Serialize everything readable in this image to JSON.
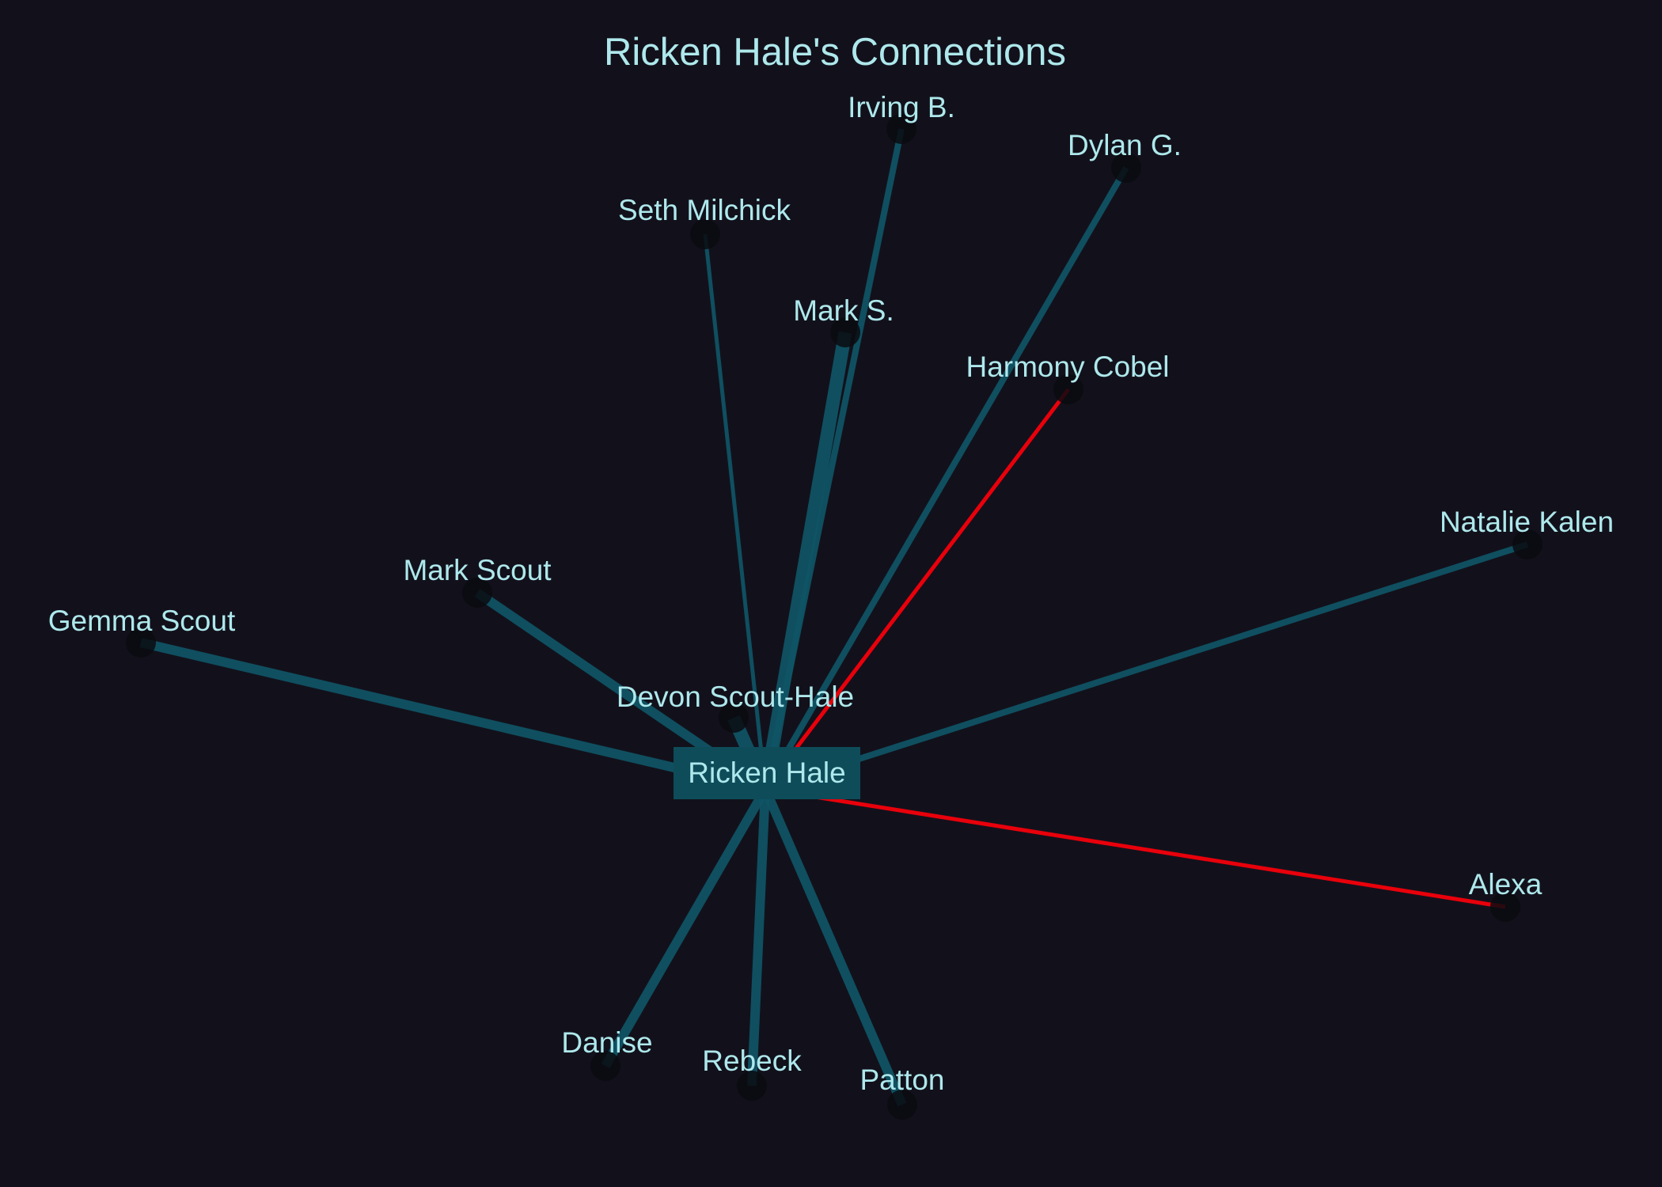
{
  "title": "Ricken Hale's Connections",
  "colors": {
    "background": "#12111b",
    "text": "#aee8ec",
    "edge": "#0f5566",
    "edge_strong": "#0f5a6b",
    "edge_conflict": "#e8000b",
    "center_box": "#0e4c5a",
    "node": "#0b0b10"
  },
  "center": {
    "label": "Ricken Hale"
  },
  "nodes": [
    {
      "id": "irving",
      "label": "Irving B.",
      "relation": "normal",
      "strength": 2
    },
    {
      "id": "dylan",
      "label": "Dylan G.",
      "relation": "normal",
      "strength": 2
    },
    {
      "id": "seth",
      "label": "Seth Milchick",
      "relation": "normal",
      "strength": 1
    },
    {
      "id": "marks",
      "label": "Mark S.",
      "relation": "normal",
      "strength": 4
    },
    {
      "id": "harmony",
      "label": "Harmony Cobel",
      "relation": "conflict",
      "strength": 1
    },
    {
      "id": "natalie",
      "label": "Natalie Kalen",
      "relation": "normal",
      "strength": 2
    },
    {
      "id": "markscout",
      "label": "Mark Scout",
      "relation": "normal",
      "strength": 3
    },
    {
      "id": "gemma",
      "label": "Gemma Scout",
      "relation": "normal",
      "strength": 3
    },
    {
      "id": "devon",
      "label": "Devon Scout-Hale",
      "relation": "normal",
      "strength": 4
    },
    {
      "id": "alexa",
      "label": "Alexa",
      "relation": "conflict",
      "strength": 1
    },
    {
      "id": "danise",
      "label": "Danise",
      "relation": "normal",
      "strength": 3
    },
    {
      "id": "rebeck",
      "label": "Rebeck",
      "relation": "normal",
      "strength": 3
    },
    {
      "id": "patton",
      "label": "Patton",
      "relation": "normal",
      "strength": 3
    }
  ]
}
